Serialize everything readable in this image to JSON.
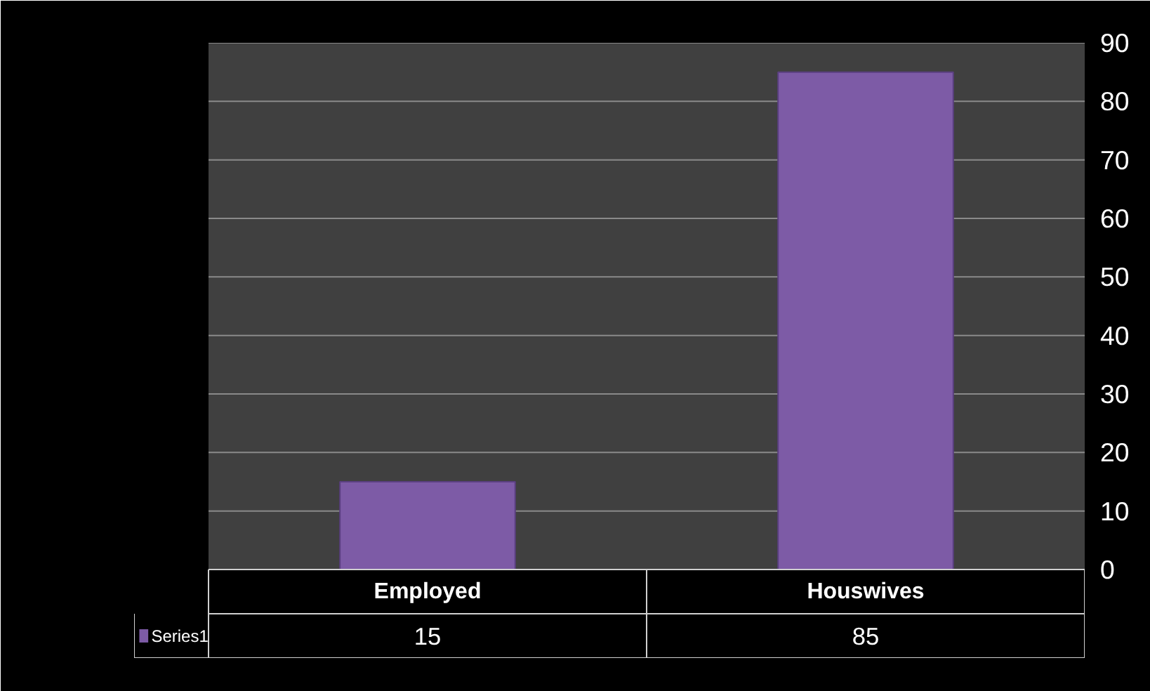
{
  "chart_data": {
    "type": "bar",
    "categories": [
      "Employed",
      "Houswives"
    ],
    "series": [
      {
        "name": "Series1",
        "color": "#7d5ba6",
        "values": [
          15,
          85
        ]
      }
    ],
    "ylim": [
      0,
      90
    ],
    "yticks": [
      0,
      10,
      20,
      30,
      40,
      50,
      60,
      70,
      80,
      90
    ],
    "grid": "y",
    "data_labels": true,
    "legend": "bottom"
  }
}
